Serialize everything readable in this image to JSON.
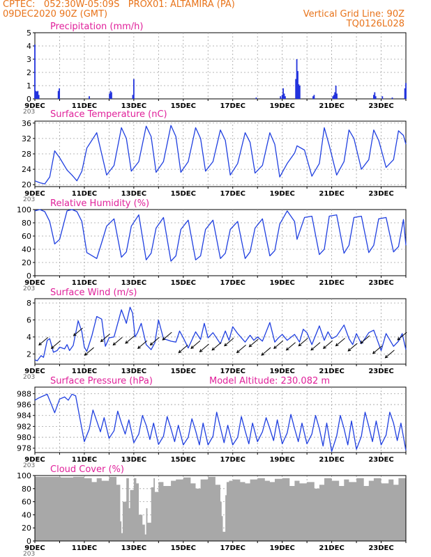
{
  "header": {
    "line1": "CPTEC:   052:30W-05:09S   PROX01: ALTAMIRA (PA)",
    "line2_left": "09DEC2020 90Z (GMT)",
    "line2_right": "Vertical Grid Line: 90Z",
    "line3_right": "TQ0126L028"
  },
  "colors": {
    "header_text": "#e8731a",
    "title_text": "#e0209a",
    "series_line": "#1f3fe0",
    "precip_bar": "#2233dd",
    "cloud_fill": "#a8a8a8",
    "wind_arrow": "#000000",
    "grid": "#a0a0a0"
  },
  "x_ticks": [
    "9DEC",
    "11DEC",
    "13DEC",
    "15DEC",
    "17DEC",
    "19DEC",
    "21DEC",
    "23DEC"
  ],
  "x_tick_cutoff": "203",
  "chart_data": [
    {
      "id": "precip",
      "type": "bar",
      "title": "Precipitation (mm/h)",
      "ylim": [
        0,
        5
      ],
      "yticks": [
        0,
        1,
        2,
        3,
        4,
        5
      ],
      "grid": true,
      "x_start_day": 9,
      "x_end_day": 24,
      "values_hourly": [
        [
          9.0,
          4.1
        ],
        [
          9.04,
          0.6
        ],
        [
          9.08,
          0.55
        ],
        [
          9.12,
          0.6
        ],
        [
          9.16,
          0.3
        ],
        [
          9.95,
          0.6
        ],
        [
          9.99,
          0.8
        ],
        [
          11.2,
          0.2
        ],
        [
          12.02,
          0.4
        ],
        [
          12.06,
          0.6
        ],
        [
          12.1,
          0.5
        ],
        [
          12.96,
          0.3
        ],
        [
          13.0,
          1.5
        ],
        [
          17.95,
          0.1
        ],
        [
          18.93,
          0.2
        ],
        [
          19.0,
          0.3
        ],
        [
          19.04,
          0.8
        ],
        [
          19.08,
          0.4
        ],
        [
          19.12,
          0.2
        ],
        [
          19.55,
          1.5
        ],
        [
          19.59,
          3.0
        ],
        [
          19.63,
          2.1
        ],
        [
          19.67,
          1.1
        ],
        [
          19.71,
          1.0
        ],
        [
          20.25,
          0.2
        ],
        [
          20.29,
          0.3
        ],
        [
          21.05,
          0.2
        ],
        [
          21.09,
          0.3
        ],
        [
          21.13,
          0.5
        ],
        [
          21.17,
          1.0
        ],
        [
          21.21,
          0.4
        ],
        [
          22.7,
          0.3
        ],
        [
          22.74,
          0.5
        ],
        [
          22.78,
          0.2
        ],
        [
          23.05,
          0.2
        ],
        [
          23.45,
          0.1
        ],
        [
          23.96,
          0.8
        ],
        [
          24.0,
          1.2
        ]
      ]
    },
    {
      "id": "temp",
      "type": "line",
      "title": "Surface Temperature (nC)",
      "ylim": [
        19.5,
        36.5
      ],
      "yticks": [
        20,
        24,
        28,
        32,
        36
      ],
      "grid": true,
      "x": [
        9.0,
        9.2,
        9.4,
        9.6,
        9.8,
        10.0,
        10.3,
        10.5,
        10.7,
        10.9,
        11.1,
        11.5,
        11.7,
        11.9,
        12.2,
        12.5,
        12.7,
        12.9,
        13.2,
        13.5,
        13.7,
        13.9,
        14.2,
        14.5,
        14.7,
        14.9,
        15.2,
        15.5,
        15.7,
        15.9,
        16.2,
        16.5,
        16.7,
        16.9,
        17.2,
        17.5,
        17.7,
        17.9,
        18.2,
        18.5,
        18.7,
        18.9,
        19.2,
        19.5,
        19.6,
        19.9,
        20.2,
        20.5,
        20.7,
        20.9,
        21.2,
        21.5,
        21.7,
        21.9,
        22.2,
        22.5,
        22.7,
        22.9,
        23.2,
        23.5,
        23.7,
        23.9,
        24.0
      ],
      "values": [
        21,
        20.5,
        20.2,
        22,
        28.8,
        27,
        23.8,
        22.5,
        21,
        23.5,
        29.5,
        33.5,
        28,
        22.5,
        25,
        34.8,
        32,
        23.5,
        26,
        35.2,
        32.5,
        23.2,
        26,
        35.4,
        32.5,
        23.2,
        26,
        34.8,
        32,
        23.5,
        26,
        34.2,
        31.5,
        22.5,
        25.5,
        33.5,
        31,
        23,
        25,
        33.5,
        30.5,
        22,
        25.5,
        28.2,
        30.1,
        29,
        22.2,
        25.5,
        34.8,
        30.2,
        22.5,
        26,
        34.2,
        32,
        24,
        26.5,
        34.2,
        31.5,
        24.5,
        26.5,
        34,
        32.8,
        30.5
      ]
    },
    {
      "id": "rh",
      "type": "line",
      "title": "Relative Humidity (%)",
      "ylim": [
        0,
        100
      ],
      "yticks": [
        0,
        20,
        40,
        60,
        80,
        100
      ],
      "grid": true,
      "x": [
        9.0,
        9.2,
        9.4,
        9.6,
        9.8,
        10.0,
        10.3,
        10.5,
        10.7,
        10.9,
        11.1,
        11.5,
        11.7,
        11.9,
        12.2,
        12.5,
        12.7,
        12.9,
        13.2,
        13.5,
        13.7,
        13.9,
        14.2,
        14.5,
        14.7,
        14.9,
        15.2,
        15.5,
        15.7,
        15.9,
        16.2,
        16.5,
        16.7,
        16.9,
        17.2,
        17.5,
        17.7,
        17.9,
        18.2,
        18.5,
        18.7,
        18.9,
        19.2,
        19.5,
        19.6,
        19.9,
        20.2,
        20.5,
        20.7,
        20.9,
        21.2,
        21.5,
        21.7,
        21.9,
        22.2,
        22.5,
        22.7,
        22.9,
        23.2,
        23.5,
        23.7,
        23.9,
        24.0
      ],
      "values": [
        98,
        100,
        97,
        82,
        48,
        55,
        98,
        100,
        97,
        82,
        35,
        26,
        50,
        75,
        86,
        28,
        36,
        75,
        92,
        24,
        34,
        72,
        88,
        22,
        30,
        70,
        84,
        24,
        30,
        70,
        84,
        26,
        34,
        70,
        82,
        26,
        36,
        72,
        86,
        30,
        38,
        78,
        98,
        82,
        55,
        88,
        90,
        32,
        40,
        90,
        92,
        34,
        46,
        88,
        90,
        35,
        46,
        86,
        88,
        36,
        44,
        85,
        46
      ]
    },
    {
      "id": "wind",
      "type": "line",
      "title": "Surface Wind (m/s)",
      "ylim": [
        0.8,
        8.5
      ],
      "yticks": [
        2,
        4,
        6,
        8
      ],
      "grid": true,
      "x": [
        9.0,
        9.1,
        9.25,
        9.35,
        9.5,
        9.6,
        9.75,
        9.9,
        10.0,
        10.2,
        10.3,
        10.4,
        10.55,
        10.75,
        10.9,
        11.0,
        11.1,
        11.3,
        11.5,
        11.7,
        11.85,
        12.0,
        12.2,
        12.5,
        12.7,
        12.85,
        12.95,
        13.05,
        13.15,
        13.3,
        13.5,
        13.7,
        13.85,
        14.0,
        14.2,
        14.5,
        14.7,
        14.85,
        15.0,
        15.2,
        15.5,
        15.7,
        15.85,
        16.0,
        16.2,
        16.5,
        16.7,
        16.85,
        17.0,
        17.2,
        17.5,
        17.7,
        17.85,
        18.0,
        18.2,
        18.5,
        18.7,
        18.85,
        19.0,
        19.2,
        19.5,
        19.7,
        19.85,
        20.0,
        20.2,
        20.5,
        20.7,
        20.85,
        21.0,
        21.2,
        21.5,
        21.7,
        21.85,
        22.0,
        22.2,
        22.5,
        22.7,
        22.85,
        23.0,
        23.2,
        23.5,
        23.7,
        23.85,
        24.0
      ],
      "values": [
        1.3,
        1.2,
        1.8,
        1.6,
        3.6,
        3.8,
        2.2,
        2.4,
        2.8,
        2.6,
        3.1,
        2.4,
        3.0,
        5.9,
        4.6,
        2.8,
        2.3,
        4.1,
        6.4,
        6.1,
        2.9,
        3.9,
        4.0,
        7.2,
        5.6,
        7.5,
        6.8,
        4.0,
        4.5,
        5.6,
        3.1,
        2.5,
        3.3,
        6.0,
        3.8,
        3.5,
        3.4,
        4.7,
        3.9,
        2.7,
        4.6,
        3.7,
        5.6,
        3.9,
        4.5,
        3.2,
        4.7,
        3.6,
        5.2,
        4.4,
        3.4,
        4.2,
        3.6,
        4.0,
        3.5,
        5.7,
        3.4,
        3.9,
        4.3,
        3.6,
        4.3,
        3.4,
        4.9,
        4.5,
        3.1,
        5.3,
        3.6,
        4.6,
        3.8,
        4.1,
        5.4,
        3.8,
        3.1,
        4.4,
        3.2,
        4.5,
        4.8,
        3.6,
        2.4,
        4.4,
        2.9,
        3.5,
        4.4,
        2.5
      ]
    },
    {
      "id": "pres",
      "type": "line",
      "title": "Surface Pressure (hPa)",
      "subtitle": "Model Altitude: 230.082  m",
      "ylim": [
        977.2,
        989.2
      ],
      "yticks": [
        978,
        980,
        982,
        984,
        986,
        988
      ],
      "grid": true,
      "x": [
        9.0,
        9.15,
        9.35,
        9.5,
        9.65,
        9.8,
        10.0,
        10.2,
        10.35,
        10.5,
        10.65,
        10.8,
        11.0,
        11.2,
        11.35,
        11.5,
        11.65,
        11.8,
        12.0,
        12.2,
        12.35,
        12.5,
        12.65,
        12.8,
        13.0,
        13.2,
        13.35,
        13.5,
        13.65,
        13.8,
        14.0,
        14.2,
        14.35,
        14.5,
        14.65,
        14.8,
        15.0,
        15.2,
        15.35,
        15.5,
        15.65,
        15.8,
        16.0,
        16.2,
        16.35,
        16.5,
        16.65,
        16.8,
        17.0,
        17.2,
        17.35,
        17.5,
        17.65,
        17.8,
        18.0,
        18.2,
        18.35,
        18.5,
        18.65,
        18.8,
        19.0,
        19.2,
        19.35,
        19.5,
        19.65,
        19.8,
        20.0,
        20.2,
        20.35,
        20.5,
        20.65,
        20.8,
        21.0,
        21.2,
        21.35,
        21.5,
        21.65,
        21.8,
        22.0,
        22.2,
        22.35,
        22.5,
        22.65,
        22.8,
        23.0,
        23.2,
        23.35,
        23.5,
        23.65,
        23.8,
        24.0
      ],
      "values": [
        986.8,
        987.2,
        987.6,
        987.9,
        986.2,
        984.5,
        987.0,
        987.4,
        986.8,
        987.9,
        987.6,
        984.0,
        979.2,
        981.5,
        985.0,
        983.0,
        981.0,
        983.6,
        979.8,
        981.2,
        984.8,
        982.6,
        980.6,
        983.2,
        979.0,
        980.6,
        984.0,
        982.2,
        979.6,
        982.6,
        978.7,
        980.2,
        983.8,
        981.6,
        979.2,
        982.2,
        978.6,
        980.0,
        983.4,
        981.2,
        978.6,
        982.6,
        978.6,
        980.2,
        984.6,
        981.8,
        979.0,
        982.2,
        978.6,
        980.0,
        983.8,
        981.2,
        978.8,
        982.6,
        979.2,
        981.0,
        983.6,
        981.6,
        979.4,
        983.2,
        978.8,
        980.8,
        984.2,
        981.6,
        979.2,
        982.6,
        978.8,
        980.6,
        984.0,
        981.6,
        978.4,
        982.6,
        977.4,
        980.2,
        984.0,
        981.6,
        978.6,
        983.0,
        977.8,
        980.2,
        984.6,
        982.0,
        979.2,
        983.0,
        978.6,
        980.4,
        984.6,
        982.6,
        979.4,
        982.6,
        977.6
      ]
    },
    {
      "id": "cloud",
      "type": "area",
      "title": "Cloud Cover (%)",
      "ylim": [
        0,
        100
      ],
      "yticks": [
        0,
        20,
        40,
        60,
        80,
        100
      ],
      "grid": true,
      "x": [
        9.0,
        10.0,
        10.05,
        10.5,
        10.55,
        11.0,
        11.3,
        11.5,
        11.7,
        12.0,
        12.3,
        12.45,
        12.5,
        12.55,
        12.7,
        12.8,
        12.85,
        13.0,
        13.1,
        13.2,
        13.35,
        13.45,
        13.5,
        13.55,
        13.7,
        13.8,
        13.85,
        14.0,
        14.2,
        14.5,
        14.7,
        15.0,
        15.3,
        15.5,
        15.7,
        16.0,
        16.3,
        16.5,
        16.55,
        16.6,
        16.7,
        16.75,
        16.85,
        17.0,
        17.3,
        17.5,
        17.7,
        18.0,
        18.3,
        18.5,
        18.7,
        19.0,
        19.3,
        19.5,
        19.7,
        20.0,
        20.3,
        20.5,
        20.7,
        21.0,
        21.3,
        21.5,
        21.7,
        22.0,
        22.3,
        22.5,
        22.7,
        23.0,
        23.3,
        23.5,
        23.7,
        24.0
      ],
      "values": [
        98,
        98,
        97,
        97,
        98,
        96,
        90,
        96,
        92,
        98,
        86,
        30,
        12,
        60,
        96,
        50,
        78,
        96,
        88,
        40,
        25,
        10,
        50,
        28,
        82,
        96,
        75,
        90,
        84,
        92,
        94,
        97,
        88,
        80,
        94,
        98,
        86,
        60,
        38,
        14,
        70,
        90,
        92,
        94,
        90,
        88,
        94,
        96,
        92,
        90,
        95,
        96,
        84,
        92,
        88,
        90,
        80,
        86,
        96,
        92,
        84,
        94,
        90,
        96,
        84,
        92,
        96,
        88,
        94,
        86,
        96,
        98
      ]
    },
    {
      "id": "windarrows",
      "type": "scatter",
      "title": "Surface Wind (m/s)",
      "x": [
        9.35,
        9.85,
        10.75,
        11.2,
        11.85,
        12.35,
        12.85,
        13.35,
        13.85,
        14.35,
        15.0,
        15.5,
        15.85,
        16.35,
        16.85,
        17.35,
        17.85,
        18.35,
        18.85,
        19.35,
        19.85,
        20.35,
        20.85,
        21.35,
        21.85,
        22.35,
        22.85,
        23.35,
        23.85
      ],
      "values": [
        3.5,
        3.1,
        4.6,
        2.3,
        3.9,
        3.5,
        3.7,
        3.1,
        3.5,
        4.1,
        2.6,
        3.1,
        2.7,
        2.9,
        3.4,
        2.6,
        3.3,
        2.3,
        3.1,
        2.9,
        3.4,
        2.9,
        3.1,
        3.4,
        2.8,
        3.7,
        2.5,
        2.0,
        4.1
      ]
    }
  ]
}
